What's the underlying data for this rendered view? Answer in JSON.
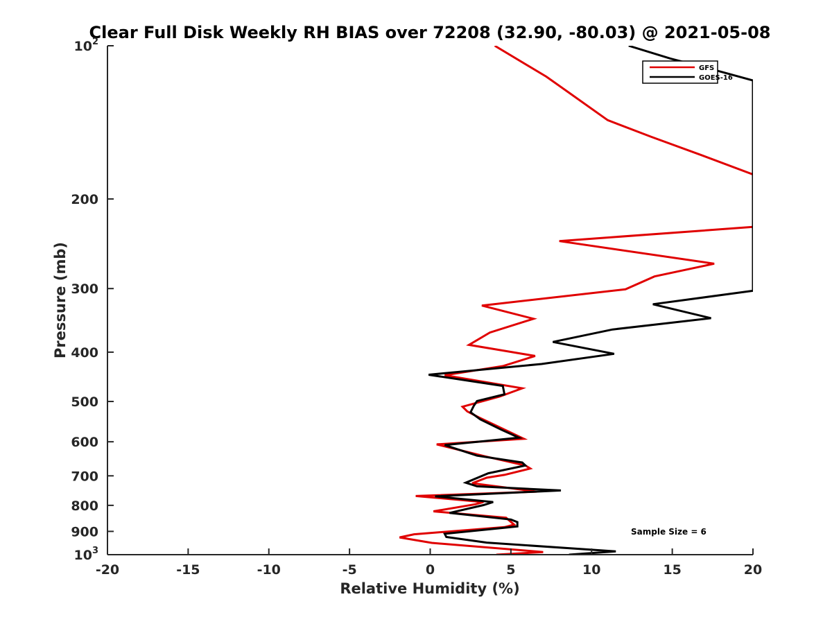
{
  "chart_data": {
    "type": "line",
    "title": "Clear Full Disk Weekly RH BIAS over 72208 (32.90, -80.03) @ 2021-05-08",
    "xlabel": "Relative Humidity (%)",
    "ylabel": "Pressure (mb)",
    "xlim": [
      -20,
      20
    ],
    "ylim": [
      100,
      1000
    ],
    "yscale": "log",
    "y_reversed": true,
    "x_ticks": [
      -20,
      -15,
      -10,
      -5,
      0,
      5,
      10,
      15,
      20
    ],
    "y_ticks": [
      {
        "value": 100,
        "base": "10",
        "exp": "2"
      },
      {
        "value": 200,
        "label": "200"
      },
      {
        "value": 300,
        "label": "300"
      },
      {
        "value": 400,
        "label": "400"
      },
      {
        "value": 500,
        "label": "500"
      },
      {
        "value": 600,
        "label": "600"
      },
      {
        "value": 700,
        "label": "700"
      },
      {
        "value": 800,
        "label": "800"
      },
      {
        "value": 900,
        "label": "900"
      },
      {
        "value": 1000,
        "base": "10",
        "exp": "3"
      }
    ],
    "legend_position": "top-right",
    "annotation": "Sample Size = 6",
    "series": [
      {
        "name": "GFS",
        "color": "#e00000",
        "points": [
          [
            4,
            100
          ],
          [
            7.2,
            115
          ],
          [
            8.5,
            123
          ],
          [
            11,
            140
          ],
          [
            13.7,
            151
          ],
          [
            16.8,
            164
          ],
          [
            20,
            179
          ],
          [
            20,
            227
          ],
          [
            8,
            242
          ],
          [
            17.6,
            268
          ],
          [
            13.9,
            284
          ],
          [
            12.1,
            301
          ],
          [
            3.2,
            324
          ],
          [
            6.4,
            344
          ],
          [
            3.7,
            366
          ],
          [
            2.4,
            387
          ],
          [
            6.5,
            407
          ],
          [
            4.5,
            426
          ],
          [
            0.9,
            444
          ],
          [
            5.7,
            471
          ],
          [
            4.3,
            489
          ],
          [
            2,
            512
          ],
          [
            2.3,
            523
          ],
          [
            3,
            537
          ],
          [
            5.8,
            592
          ],
          [
            0.4,
            607
          ],
          [
            3.4,
            641
          ],
          [
            5.9,
            668
          ],
          [
            6.2,
            677
          ],
          [
            4.6,
            697
          ],
          [
            3.5,
            706
          ],
          [
            2.6,
            724
          ],
          [
            4.7,
            738
          ],
          [
            6.6,
            752
          ],
          [
            -0.9,
            767
          ],
          [
            3.3,
            788
          ],
          [
            2.8,
            796
          ],
          [
            0.2,
            822
          ],
          [
            4.7,
            846
          ],
          [
            5.2,
            873
          ],
          [
            4.6,
            883
          ],
          [
            -1,
            912
          ],
          [
            -1.9,
            925
          ],
          [
            0.1,
            948
          ],
          [
            7,
            988
          ],
          [
            4.1,
            1000
          ]
        ]
      },
      {
        "name": "GOES-16",
        "color": "#000000",
        "points": [
          [
            12.3,
            100
          ],
          [
            14.9,
            106
          ],
          [
            17.8,
            112
          ],
          [
            20,
            117
          ],
          [
            20,
            303
          ],
          [
            13.8,
            322
          ],
          [
            17.4,
            343
          ],
          [
            11.3,
            361
          ],
          [
            7.6,
            382
          ],
          [
            11.4,
            403
          ],
          [
            6.9,
            422
          ],
          [
            -0.1,
            443
          ],
          [
            4.5,
            466
          ],
          [
            4.6,
            484
          ],
          [
            2.9,
            499
          ],
          [
            2.7,
            510
          ],
          [
            2.5,
            525
          ],
          [
            3.1,
            542
          ],
          [
            4.4,
            568
          ],
          [
            5.5,
            589
          ],
          [
            0.9,
            609
          ],
          [
            2.9,
            639
          ],
          [
            5.7,
            659
          ],
          [
            5.9,
            668
          ],
          [
            3.6,
            692
          ],
          [
            2.2,
            722
          ],
          [
            2.9,
            734
          ],
          [
            8.1,
            748
          ],
          [
            0.3,
            768
          ],
          [
            3.9,
            788
          ],
          [
            3.3,
            799
          ],
          [
            1.2,
            828
          ],
          [
            5,
            853
          ],
          [
            5.4,
            863
          ],
          [
            5.4,
            880
          ],
          [
            0.9,
            910
          ],
          [
            1,
            923
          ],
          [
            3.5,
            947
          ],
          [
            10,
            978
          ],
          [
            11.5,
            985
          ],
          [
            8.6,
            1000
          ]
        ]
      }
    ]
  }
}
